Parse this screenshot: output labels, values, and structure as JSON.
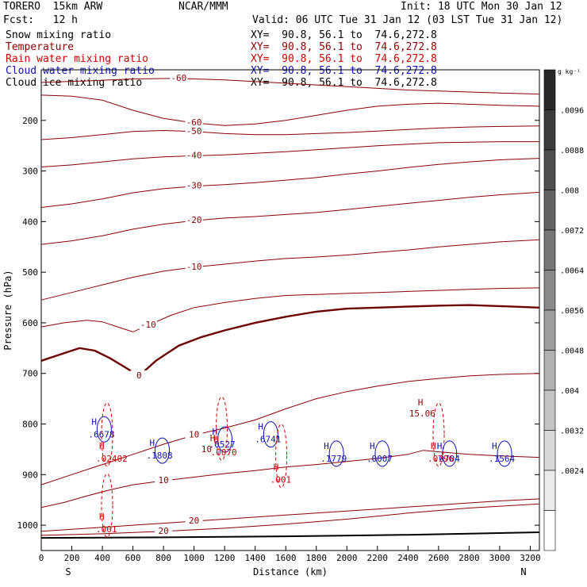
{
  "header": {
    "model": "TORERO  15km ARW",
    "center": "NCAR/MMM",
    "init": "Init: 18 UTC Mon 30 Jan 12",
    "fcst": "Fcst:   12 h",
    "valid": "Valid: 06 UTC Tue 31 Jan 12 (03 LST Tue 31 Jan 12)"
  },
  "fields": [
    {
      "name": "Snow mixing ratio",
      "color": "#000000",
      "xy": "XY=  90.8, 56.1 to  74.6,272.8",
      "xy_color": "#000000"
    },
    {
      "name": "Temperature",
      "color": "#8b0000",
      "xy": "XY=  90.8, 56.1 to  74.6,272.8",
      "xy_color": "#8b0000"
    },
    {
      "name": "Rain water mixing ratio",
      "color": "#cc0000",
      "xy": "XY=  90.8, 56.1 to  74.6,272.8",
      "xy_color": "#cc0000"
    },
    {
      "name": "Cloud water mixing ratio",
      "color": "#1010b0",
      "xy": "XY=  90.8, 56.1 to  74.6,272.8",
      "xy_color": "#1010b0"
    },
    {
      "name": "Cloud ice mixing ratio",
      "color": "#000000",
      "xy": "XY=  90.8, 56.1 to  74.6,272.8",
      "xy_color": "#000000"
    }
  ],
  "chart_data": {
    "type": "contour",
    "xlabel": "Distance (km)",
    "ylabel": "Pressure (hPa)",
    "x_ticks": [
      0,
      200,
      400,
      600,
      800,
      1000,
      1200,
      1400,
      1600,
      1800,
      2000,
      2200,
      2400,
      2600,
      2800,
      3000,
      3200
    ],
    "y_ticks": [
      200,
      300,
      400,
      500,
      600,
      700,
      800,
      900,
      1000
    ],
    "xlim": [
      0,
      3260
    ],
    "ylim": [
      1050,
      100
    ],
    "start_label": "S",
    "end_label": "N",
    "colorbar": {
      "unit": "g kg⁻¹",
      "labels": [
        ".0096",
        ".0088",
        ".008",
        ".0072",
        ".0064",
        ".0056",
        ".0048",
        ".004",
        ".0032",
        ".0024"
      ]
    },
    "temperature_contours": [
      {
        "label": "-60",
        "color": "#8b0000",
        "width": 1,
        "points": [
          [
            0,
            150
          ],
          [
            200,
            152
          ],
          [
            400,
            160
          ],
          [
            600,
            180
          ],
          [
            800,
            196
          ],
          [
            1000,
            205
          ],
          [
            1200,
            210
          ],
          [
            1400,
            207
          ],
          [
            1600,
            200
          ],
          [
            1800,
            190
          ],
          [
            2000,
            180
          ],
          [
            2200,
            172
          ],
          [
            2400,
            168
          ],
          [
            2600,
            166
          ],
          [
            2800,
            168
          ],
          [
            3000,
            170
          ],
          [
            3260,
            172
          ]
        ]
      },
      {
        "label": "-60",
        "color": "#8b0000",
        "width": 1,
        "points": [
          [
            0,
            125
          ],
          [
            300,
            122
          ],
          [
            600,
            118
          ],
          [
            900,
            117
          ],
          [
            1200,
            120
          ],
          [
            1500,
            125
          ],
          [
            1800,
            130
          ],
          [
            2100,
            135
          ],
          [
            2400,
            140
          ],
          [
            2700,
            143
          ],
          [
            3000,
            146
          ],
          [
            3260,
            148
          ]
        ]
      },
      {
        "label": "-50",
        "color": "#8b0000",
        "width": 1,
        "points": [
          [
            0,
            238
          ],
          [
            200,
            234
          ],
          [
            400,
            228
          ],
          [
            600,
            222
          ],
          [
            800,
            220
          ],
          [
            1000,
            222
          ],
          [
            1200,
            226
          ],
          [
            1400,
            228
          ],
          [
            1600,
            228
          ],
          [
            1800,
            226
          ],
          [
            2000,
            224
          ],
          [
            2200,
            221
          ],
          [
            2400,
            218
          ],
          [
            2600,
            215
          ],
          [
            2800,
            213
          ],
          [
            3000,
            212
          ],
          [
            3260,
            211
          ]
        ]
      },
      {
        "label": "-40",
        "color": "#8b0000",
        "width": 1,
        "points": [
          [
            0,
            292
          ],
          [
            200,
            288
          ],
          [
            400,
            282
          ],
          [
            600,
            276
          ],
          [
            800,
            272
          ],
          [
            1000,
            270
          ],
          [
            1200,
            268
          ],
          [
            1400,
            265
          ],
          [
            1600,
            262
          ],
          [
            1800,
            258
          ],
          [
            2000,
            254
          ],
          [
            2200,
            250
          ],
          [
            2400,
            247
          ],
          [
            2600,
            244
          ],
          [
            2800,
            243
          ],
          [
            3000,
            242
          ],
          [
            3260,
            242
          ]
        ]
      },
      {
        "label": "-30",
        "color": "#8b0000",
        "width": 1,
        "points": [
          [
            0,
            372
          ],
          [
            200,
            365
          ],
          [
            400,
            355
          ],
          [
            600,
            343
          ],
          [
            800,
            335
          ],
          [
            1000,
            330
          ],
          [
            1200,
            327
          ],
          [
            1400,
            323
          ],
          [
            1600,
            318
          ],
          [
            1800,
            313
          ],
          [
            2000,
            306
          ],
          [
            2200,
            300
          ],
          [
            2400,
            293
          ],
          [
            2600,
            287
          ],
          [
            2800,
            282
          ],
          [
            3000,
            278
          ],
          [
            3260,
            275
          ]
        ]
      },
      {
        "label": "-20",
        "color": "#8b0000",
        "width": 1,
        "points": [
          [
            0,
            445
          ],
          [
            200,
            438
          ],
          [
            400,
            428
          ],
          [
            600,
            415
          ],
          [
            800,
            405
          ],
          [
            1000,
            398
          ],
          [
            1200,
            393
          ],
          [
            1400,
            390
          ],
          [
            1600,
            386
          ],
          [
            1800,
            382
          ],
          [
            2000,
            376
          ],
          [
            2200,
            370
          ],
          [
            2400,
            364
          ],
          [
            2600,
            358
          ],
          [
            2800,
            352
          ],
          [
            3000,
            347
          ],
          [
            3260,
            342
          ]
        ]
      },
      {
        "label": "-10",
        "color": "#8b0000",
        "width": 1,
        "points": [
          [
            0,
            555
          ],
          [
            200,
            540
          ],
          [
            400,
            525
          ],
          [
            600,
            510
          ],
          [
            800,
            498
          ],
          [
            1000,
            490
          ],
          [
            1200,
            484
          ],
          [
            1400,
            478
          ],
          [
            1600,
            473
          ],
          [
            1800,
            470
          ],
          [
            2000,
            466
          ],
          [
            2200,
            461
          ],
          [
            2400,
            456
          ],
          [
            2600,
            450
          ],
          [
            2800,
            445
          ],
          [
            3000,
            440
          ],
          [
            3260,
            436
          ]
        ]
      },
      {
        "label": "0",
        "color": "#6e0000",
        "width": 2.4,
        "points": [
          [
            0,
            675
          ],
          [
            100,
            665
          ],
          [
            250,
            650
          ],
          [
            350,
            655
          ],
          [
            450,
            670
          ],
          [
            560,
            690
          ],
          [
            640,
            705
          ],
          [
            750,
            675
          ],
          [
            900,
            645
          ],
          [
            1050,
            628
          ],
          [
            1200,
            615
          ],
          [
            1400,
            600
          ],
          [
            1600,
            588
          ],
          [
            1800,
            578
          ],
          [
            2000,
            572
          ],
          [
            2200,
            570
          ],
          [
            2400,
            568
          ],
          [
            2600,
            566
          ],
          [
            2800,
            565
          ],
          [
            3000,
            567
          ],
          [
            3260,
            570
          ]
        ]
      },
      {
        "label": "-10",
        "color": "#8b0000",
        "width": 1,
        "points": [
          [
            0,
            608
          ],
          [
            150,
            600
          ],
          [
            300,
            595
          ],
          [
            400,
            598
          ],
          [
            500,
            608
          ],
          [
            600,
            618
          ],
          [
            700,
            605
          ],
          [
            850,
            585
          ],
          [
            1000,
            570
          ],
          [
            1200,
            560
          ],
          [
            1400,
            552
          ],
          [
            1600,
            546
          ],
          [
            1800,
            544
          ],
          [
            2000,
            542
          ],
          [
            2200,
            540
          ],
          [
            2400,
            538
          ],
          [
            2600,
            536
          ],
          [
            2800,
            534
          ],
          [
            3000,
            532
          ],
          [
            3260,
            531
          ]
        ]
      },
      {
        "label": "10",
        "color": "#8b0000",
        "width": 1,
        "points": [
          [
            0,
            920
          ],
          [
            200,
            900
          ],
          [
            400,
            880
          ],
          [
            600,
            860
          ],
          [
            800,
            840
          ],
          [
            1000,
            822
          ],
          [
            1200,
            808
          ],
          [
            1400,
            792
          ],
          [
            1600,
            770
          ],
          [
            1800,
            750
          ],
          [
            2000,
            736
          ],
          [
            2200,
            725
          ],
          [
            2400,
            716
          ],
          [
            2600,
            710
          ],
          [
            2800,
            705
          ],
          [
            3000,
            702
          ],
          [
            3260,
            700
          ]
        ]
      },
      {
        "label": "10",
        "color": "#8b0000",
        "width": 1,
        "points": [
          [
            0,
            965
          ],
          [
            150,
            955
          ],
          [
            300,
            942
          ],
          [
            450,
            930
          ],
          [
            600,
            920
          ],
          [
            800,
            912
          ],
          [
            1000,
            905
          ],
          [
            1200,
            898
          ],
          [
            1400,
            892
          ],
          [
            1600,
            885
          ],
          [
            1800,
            880
          ],
          [
            2000,
            874
          ],
          [
            2200,
            868
          ],
          [
            2400,
            860
          ],
          [
            2500,
            852
          ],
          [
            2600,
            855
          ],
          [
            2800,
            860
          ],
          [
            3000,
            863
          ],
          [
            3260,
            866
          ]
        ]
      },
      {
        "label": "20",
        "color": "#8b0000",
        "width": 1,
        "points": [
          [
            0,
            1012
          ],
          [
            200,
            1008
          ],
          [
            400,
            1004
          ],
          [
            600,
            1000
          ],
          [
            800,
            996
          ],
          [
            1000,
            992
          ],
          [
            1200,
            988
          ],
          [
            1400,
            984
          ],
          [
            1600,
            980
          ],
          [
            1800,
            976
          ],
          [
            2000,
            972
          ],
          [
            2200,
            968
          ],
          [
            2400,
            964
          ],
          [
            2600,
            960
          ],
          [
            2800,
            956
          ],
          [
            3000,
            952
          ],
          [
            3260,
            948
          ]
        ]
      },
      {
        "label": "20",
        "color": "#8b0000",
        "width": 1,
        "points": [
          [
            0,
            1020
          ],
          [
            400,
            1017
          ],
          [
            800,
            1012
          ],
          [
            1200,
            1006
          ],
          [
            1600,
            998
          ],
          [
            2000,
            988
          ],
          [
            2400,
            976
          ],
          [
            2800,
            966
          ],
          [
            3260,
            958
          ]
        ]
      }
    ],
    "surface_line": {
      "color": "#000000",
      "points": [
        [
          0,
          1025
        ],
        [
          800,
          1024
        ],
        [
          1600,
          1022
        ],
        [
          2400,
          1019
        ],
        [
          3260,
          1014
        ]
      ]
    },
    "cloud_water_maxima": [
      {
        "x": 360,
        "p": 820,
        "value": ".6678"
      },
      {
        "x": 740,
        "p": 862,
        "value": ".1808"
      },
      {
        "x": 1150,
        "p": 840,
        "value": ".0527"
      },
      {
        "x": 1450,
        "p": 830,
        "value": ".6741"
      },
      {
        "x": 1880,
        "p": 868,
        "value": ".1779"
      },
      {
        "x": 2180,
        "p": 868,
        "value": ".0007"
      },
      {
        "x": 2620,
        "p": 868,
        "value": ".0704"
      },
      {
        "x": 2980,
        "p": 868,
        "value": ".1564"
      }
    ],
    "rain_water_maxima": [
      {
        "x": 410,
        "p": 868,
        "value": ".02402"
      },
      {
        "x": 1550,
        "p": 910,
        "value": ".001"
      },
      {
        "x": 410,
        "p": 1008,
        "value": ".001"
      },
      {
        "x": 1160,
        "p": 856,
        "value": ".0070"
      },
      {
        "x": 2580,
        "p": 868,
        "value": ".0796"
      }
    ],
    "temperature_maxima": [
      {
        "x": 2480,
        "p": 785,
        "value": "15.06"
      },
      {
        "x": 1120,
        "p": 856,
        "value": "10"
      }
    ]
  }
}
